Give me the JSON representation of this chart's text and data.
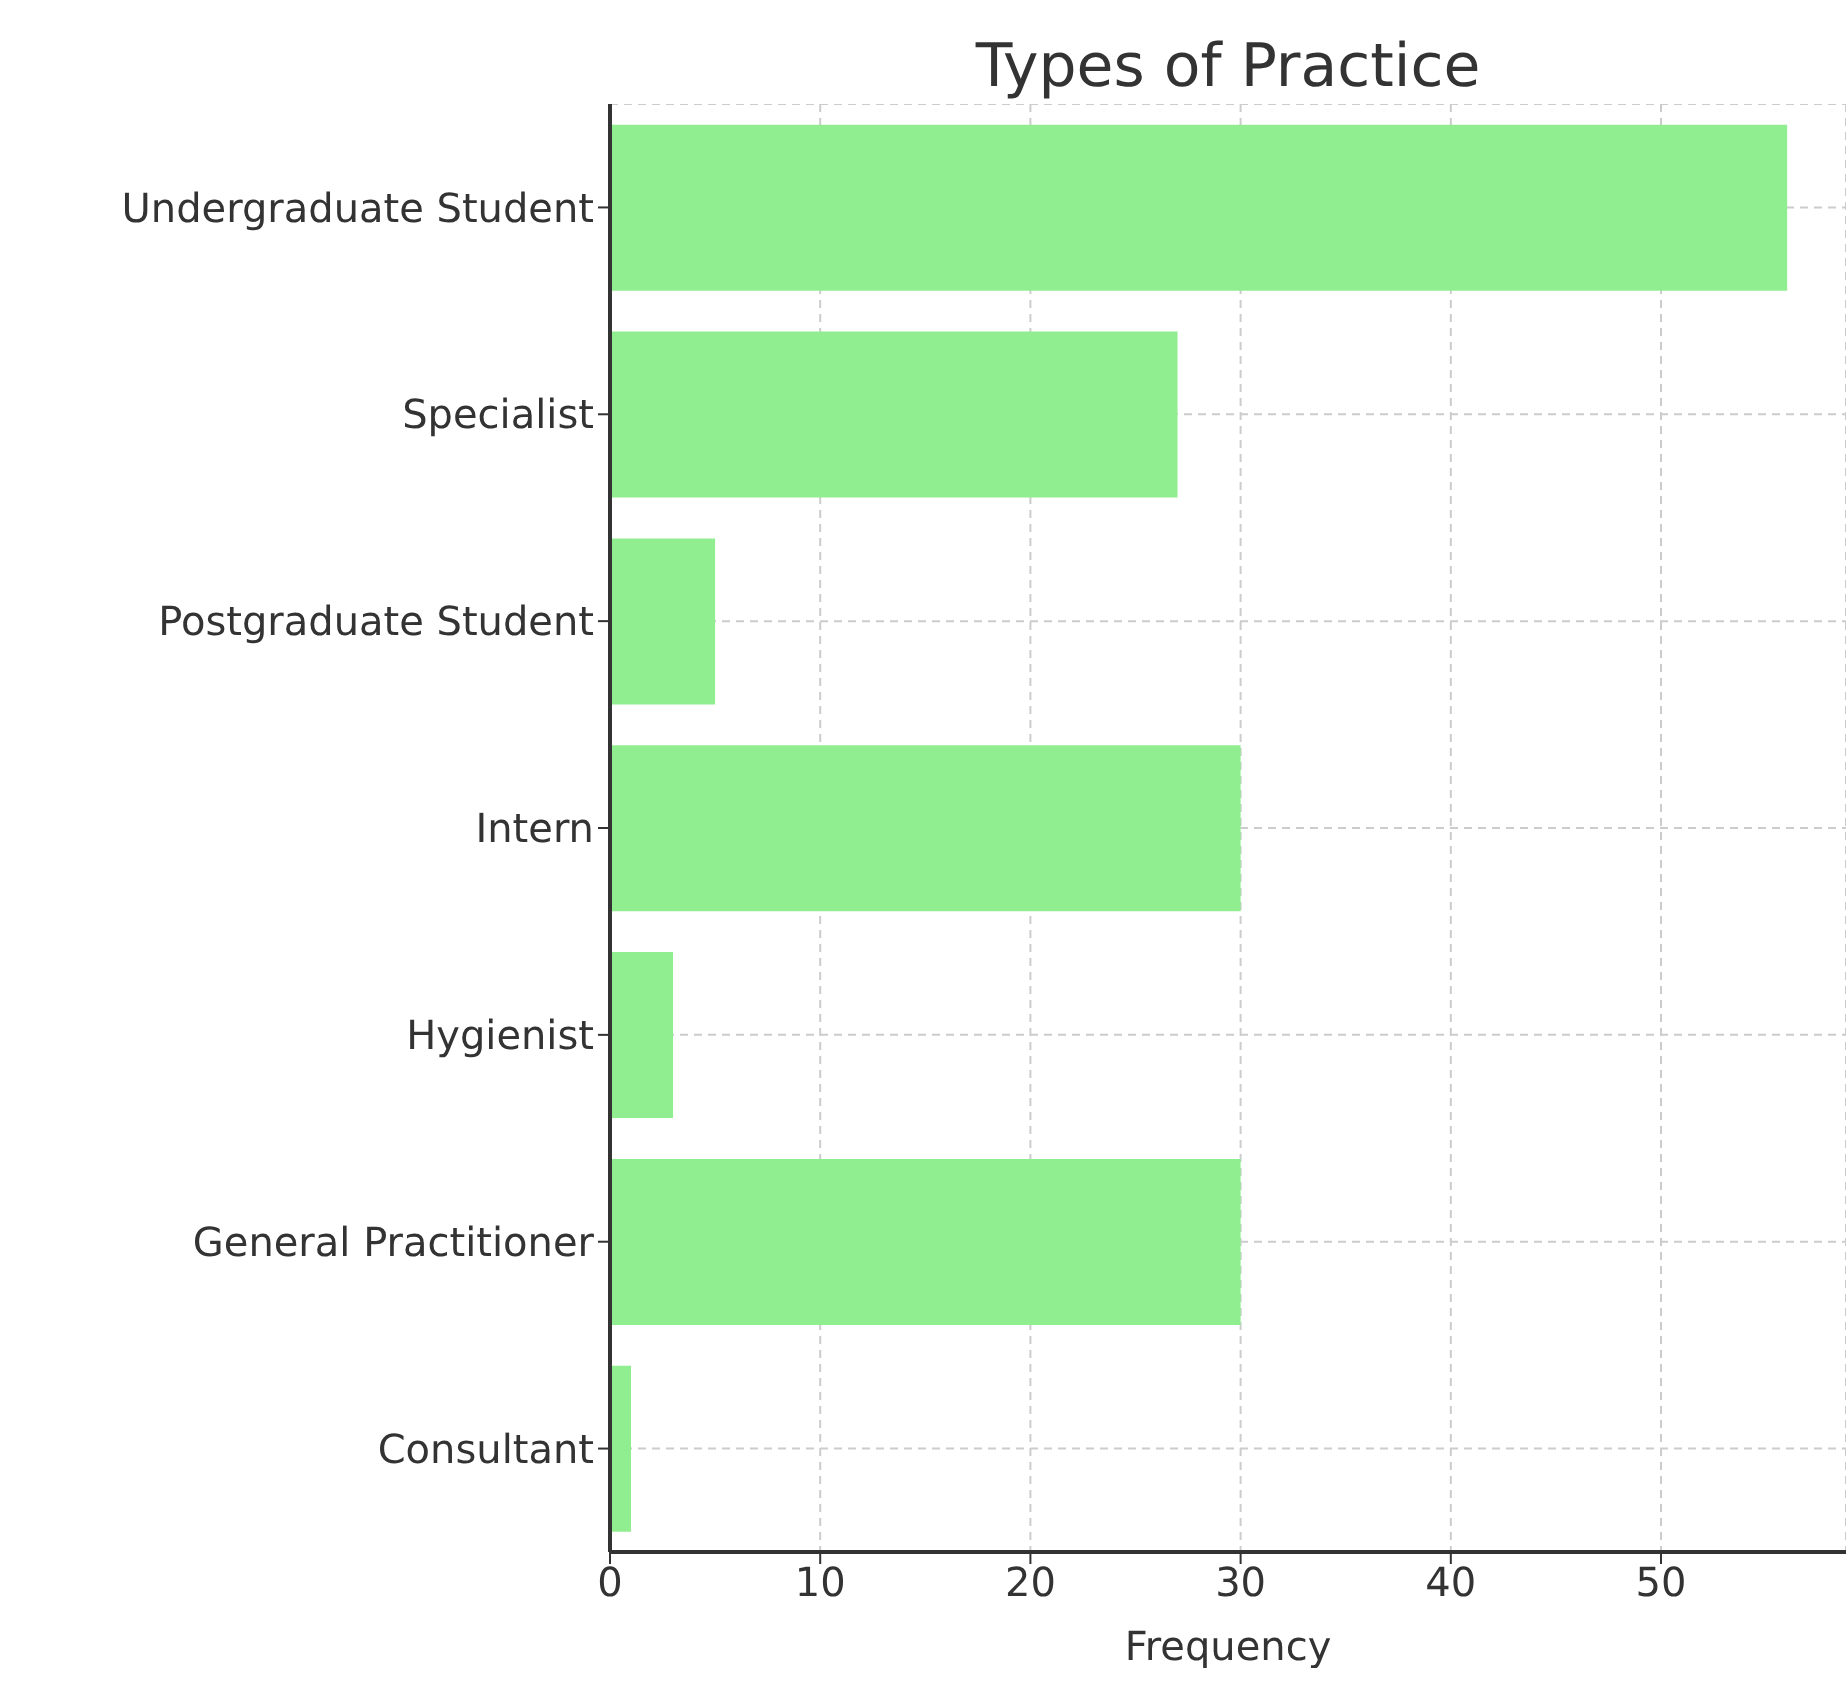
{
  "chart_data": {
    "type": "bar",
    "orientation": "horizontal",
    "title": "Types of Practice",
    "xlabel": "Frequency",
    "categories": [
      "Undergraduate Student",
      "Specialist",
      "Postgraduate Student",
      "Intern",
      "Hygienist",
      "General Practitioner",
      "Consultant"
    ],
    "values": [
      56,
      27,
      5,
      30,
      3,
      30,
      1
    ],
    "color": "#90ee90",
    "xlim": [
      0,
      58.8
    ],
    "xticks": [
      0,
      10,
      20,
      30,
      40,
      50
    ],
    "grid": true
  }
}
